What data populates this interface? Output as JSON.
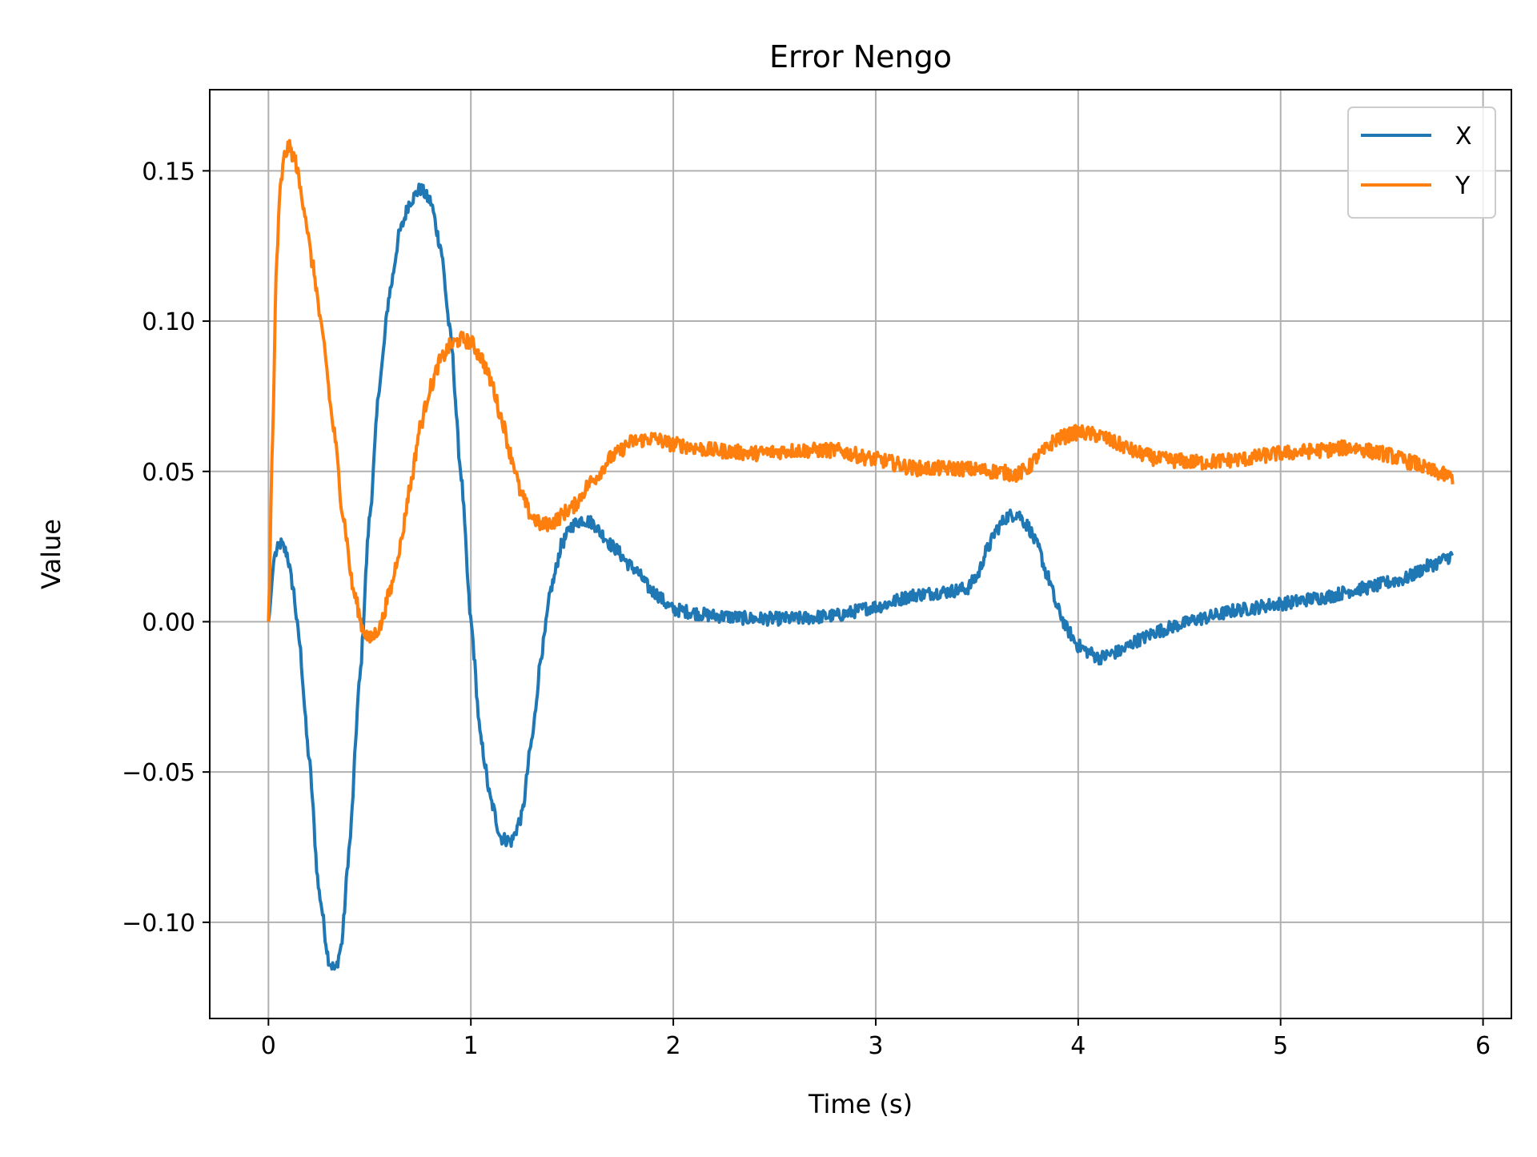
{
  "chart_data": {
    "type": "line",
    "title": "Error Nengo",
    "xlabel": "Time (s)",
    "ylabel": "Value",
    "xlim": [
      -0.29,
      6.14
    ],
    "ylim": [
      -0.132,
      0.177
    ],
    "xticks": [
      0,
      1,
      2,
      3,
      4,
      5,
      6
    ],
    "xtick_labels": [
      "0",
      "1",
      "2",
      "3",
      "4",
      "5",
      "6"
    ],
    "yticks": [
      -0.1,
      -0.05,
      0.0,
      0.05,
      0.1,
      0.15
    ],
    "ytick_labels": [
      "−0.10",
      "−0.05",
      "0.00",
      "0.05",
      "0.10",
      "0.15"
    ],
    "grid": true,
    "legend": "top-right",
    "noise_amplitude_x": 0.0022,
    "noise_amplitude_y": 0.0025,
    "series": [
      {
        "name": "X",
        "color": "#1f77b4",
        "points": [
          [
            0.0,
            0.0
          ],
          [
            0.03,
            0.022
          ],
          [
            0.06,
            0.026
          ],
          [
            0.09,
            0.023
          ],
          [
            0.12,
            0.012
          ],
          [
            0.15,
            -0.005
          ],
          [
            0.2,
            -0.045
          ],
          [
            0.25,
            -0.09
          ],
          [
            0.3,
            -0.113
          ],
          [
            0.33,
            -0.116
          ],
          [
            0.36,
            -0.108
          ],
          [
            0.4,
            -0.075
          ],
          [
            0.45,
            -0.02
          ],
          [
            0.5,
            0.035
          ],
          [
            0.55,
            0.08
          ],
          [
            0.6,
            0.11
          ],
          [
            0.65,
            0.13
          ],
          [
            0.7,
            0.14
          ],
          [
            0.75,
            0.144
          ],
          [
            0.8,
            0.14
          ],
          [
            0.85,
            0.125
          ],
          [
            0.9,
            0.095
          ],
          [
            0.95,
            0.05
          ],
          [
            1.0,
            0.0
          ],
          [
            1.05,
            -0.04
          ],
          [
            1.1,
            -0.06
          ],
          [
            1.15,
            -0.072
          ],
          [
            1.2,
            -0.073
          ],
          [
            1.25,
            -0.065
          ],
          [
            1.3,
            -0.04
          ],
          [
            1.35,
            -0.01
          ],
          [
            1.4,
            0.012
          ],
          [
            1.45,
            0.026
          ],
          [
            1.5,
            0.032
          ],
          [
            1.55,
            0.034
          ],
          [
            1.6,
            0.033
          ],
          [
            1.65,
            0.029
          ],
          [
            1.7,
            0.025
          ],
          [
            1.8,
            0.018
          ],
          [
            1.9,
            0.01
          ],
          [
            2.0,
            0.004
          ],
          [
            2.2,
            0.002
          ],
          [
            2.4,
            0.001
          ],
          [
            2.6,
            0.001
          ],
          [
            2.8,
            0.002
          ],
          [
            3.0,
            0.005
          ],
          [
            3.2,
            0.009
          ],
          [
            3.35,
            0.01
          ],
          [
            3.45,
            0.011
          ],
          [
            3.5,
            0.015
          ],
          [
            3.55,
            0.024
          ],
          [
            3.6,
            0.031
          ],
          [
            3.65,
            0.035
          ],
          [
            3.7,
            0.036
          ],
          [
            3.75,
            0.032
          ],
          [
            3.8,
            0.025
          ],
          [
            3.85,
            0.015
          ],
          [
            3.9,
            0.004
          ],
          [
            3.95,
            -0.003
          ],
          [
            4.0,
            -0.008
          ],
          [
            4.05,
            -0.01
          ],
          [
            4.1,
            -0.012
          ],
          [
            4.2,
            -0.01
          ],
          [
            4.3,
            -0.006
          ],
          [
            4.4,
            -0.003
          ],
          [
            4.5,
            -0.001
          ],
          [
            4.6,
            0.001
          ],
          [
            4.8,
            0.004
          ],
          [
            5.0,
            0.006
          ],
          [
            5.2,
            0.008
          ],
          [
            5.4,
            0.011
          ],
          [
            5.6,
            0.014
          ],
          [
            5.75,
            0.019
          ],
          [
            5.85,
            0.022
          ]
        ]
      },
      {
        "name": "Y",
        "color": "#ff7f0e",
        "points": [
          [
            0.0,
            0.0
          ],
          [
            0.02,
            0.06
          ],
          [
            0.04,
            0.12
          ],
          [
            0.06,
            0.145
          ],
          [
            0.08,
            0.155
          ],
          [
            0.1,
            0.158
          ],
          [
            0.13,
            0.154
          ],
          [
            0.17,
            0.14
          ],
          [
            0.22,
            0.118
          ],
          [
            0.27,
            0.094
          ],
          [
            0.32,
            0.065
          ],
          [
            0.37,
            0.035
          ],
          [
            0.42,
            0.01
          ],
          [
            0.47,
            -0.003
          ],
          [
            0.5,
            -0.006
          ],
          [
            0.55,
            -0.002
          ],
          [
            0.6,
            0.01
          ],
          [
            0.65,
            0.025
          ],
          [
            0.7,
            0.045
          ],
          [
            0.75,
            0.065
          ],
          [
            0.8,
            0.078
          ],
          [
            0.85,
            0.087
          ],
          [
            0.9,
            0.092
          ],
          [
            0.95,
            0.094
          ],
          [
            1.0,
            0.093
          ],
          [
            1.05,
            0.088
          ],
          [
            1.1,
            0.08
          ],
          [
            1.15,
            0.068
          ],
          [
            1.2,
            0.055
          ],
          [
            1.25,
            0.042
          ],
          [
            1.3,
            0.035
          ],
          [
            1.35,
            0.032
          ],
          [
            1.4,
            0.033
          ],
          [
            1.5,
            0.038
          ],
          [
            1.6,
            0.047
          ],
          [
            1.7,
            0.055
          ],
          [
            1.8,
            0.06
          ],
          [
            1.9,
            0.061
          ],
          [
            2.0,
            0.059
          ],
          [
            2.2,
            0.057
          ],
          [
            2.4,
            0.056
          ],
          [
            2.6,
            0.057
          ],
          [
            2.8,
            0.057
          ],
          [
            3.0,
            0.054
          ],
          [
            3.2,
            0.051
          ],
          [
            3.4,
            0.051
          ],
          [
            3.6,
            0.05
          ],
          [
            3.7,
            0.049
          ],
          [
            3.75,
            0.051
          ],
          [
            3.8,
            0.055
          ],
          [
            3.9,
            0.061
          ],
          [
            4.0,
            0.063
          ],
          [
            4.1,
            0.062
          ],
          [
            4.2,
            0.059
          ],
          [
            4.3,
            0.056
          ],
          [
            4.4,
            0.054
          ],
          [
            4.6,
            0.053
          ],
          [
            4.8,
            0.054
          ],
          [
            5.0,
            0.056
          ],
          [
            5.2,
            0.057
          ],
          [
            5.35,
            0.058
          ],
          [
            5.5,
            0.056
          ],
          [
            5.65,
            0.053
          ],
          [
            5.75,
            0.05
          ],
          [
            5.85,
            0.048
          ]
        ]
      }
    ]
  }
}
